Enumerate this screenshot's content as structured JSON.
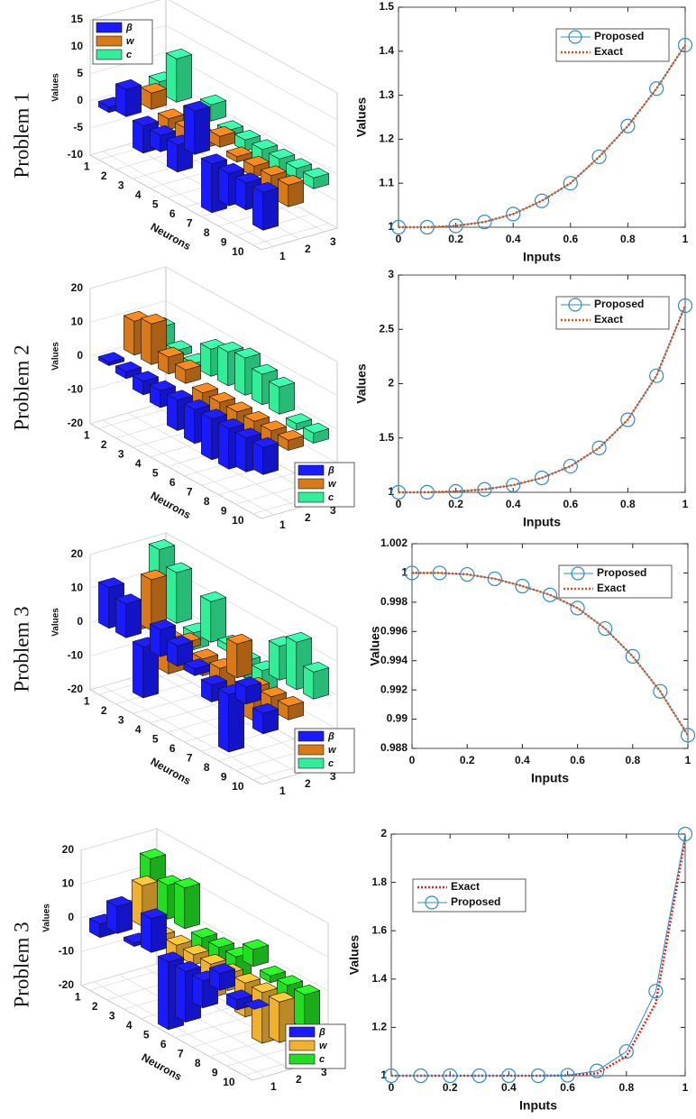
{
  "row_labels": [
    "Problem 1",
    "Problem 2",
    "Problem 3",
    "Problem 3"
  ],
  "chart_data": [
    {
      "type": "bar3d",
      "categories": [
        1,
        2,
        3,
        4,
        5,
        6,
        7,
        8,
        9,
        10
      ],
      "depth_ticks": [
        1,
        2,
        3
      ],
      "series": [
        {
          "name": "β",
          "color": "#1a1aff",
          "values": [
            -1,
            5,
            -5,
            -3,
            -5,
            8,
            -9,
            -6,
            -5,
            -7
          ]
        },
        {
          "name": "w",
          "color": "#d97a1a",
          "values": [
            0,
            3,
            -2,
            -3,
            -2,
            2,
            -1,
            -2,
            -3,
            -4
          ]
        },
        {
          "name": "c",
          "color": "#33ee99",
          "values": [
            2,
            8,
            -3,
            3,
            -1,
            -2,
            -3,
            -4,
            -2,
            -2
          ]
        }
      ],
      "zlim": [
        -10,
        15
      ],
      "zticks": [
        -10,
        -5,
        0,
        5,
        10,
        15
      ],
      "xlabel": "Neurons",
      "zlabel": "Values",
      "legend": "northwest",
      "grid": true
    },
    {
      "type": "line",
      "x": [
        0,
        0.1,
        0.2,
        0.3,
        0.4,
        0.5,
        0.6,
        0.7,
        0.8,
        0.9,
        1
      ],
      "series": [
        {
          "name": "Proposed",
          "color": "#2e8bc0",
          "style": "solid",
          "marker": "o",
          "values": [
            1,
            1.0,
            1.003,
            1.012,
            1.03,
            1.06,
            1.1,
            1.16,
            1.23,
            1.315,
            1.414
          ]
        },
        {
          "name": "Exact",
          "color": "#d95319",
          "style": "dotted",
          "values": [
            1,
            1.0,
            1.003,
            1.012,
            1.03,
            1.06,
            1.1,
            1.16,
            1.23,
            1.315,
            1.414
          ]
        }
      ],
      "xlim": [
        0,
        1
      ],
      "xticks": [
        0,
        0.2,
        0.4,
        0.6,
        0.8,
        1
      ],
      "ylim": [
        1,
        1.5
      ],
      "yticks": [
        1,
        1.1,
        1.2,
        1.3,
        1.4,
        1.5
      ],
      "xlabel": "Inputs",
      "ylabel": "Values",
      "legend": "northeast"
    },
    {
      "type": "bar3d",
      "categories": [
        1,
        2,
        3,
        4,
        5,
        6,
        7,
        8,
        9,
        10
      ],
      "depth_ticks": [
        1,
        2,
        3
      ],
      "series": [
        {
          "name": "β",
          "color": "#1a1aff",
          "values": [
            -1,
            -2,
            -4,
            -5,
            -9,
            -10,
            -12,
            -12,
            -10,
            -8
          ]
        },
        {
          "name": "w",
          "color": "#d97a1a",
          "values": [
            10,
            12,
            5,
            4,
            -5,
            -4,
            -6,
            -7,
            -5,
            -3
          ]
        },
        {
          "name": "c",
          "color": "#33ee99",
          "values": [
            6,
            2,
            1,
            8,
            10,
            11,
            9,
            8,
            -2,
            -3
          ]
        }
      ],
      "zlim": [
        -20,
        20
      ],
      "zticks": [
        -20,
        -10,
        0,
        10,
        20
      ],
      "xlabel": "Neurons",
      "zlabel": "Values",
      "legend": "southeast",
      "grid": true
    },
    {
      "type": "line",
      "x": [
        0,
        0.1,
        0.2,
        0.3,
        0.4,
        0.5,
        0.6,
        0.7,
        0.8,
        0.9,
        1
      ],
      "series": [
        {
          "name": "Proposed",
          "color": "#2e8bc0",
          "style": "solid",
          "marker": "o",
          "values": [
            1,
            1.001,
            1.008,
            1.027,
            1.066,
            1.133,
            1.241,
            1.409,
            1.668,
            2.073,
            2.718
          ]
        },
        {
          "name": "Exact",
          "color": "#d95319",
          "style": "dotted",
          "values": [
            1,
            1.001,
            1.008,
            1.027,
            1.066,
            1.133,
            1.241,
            1.409,
            1.668,
            2.073,
            2.718
          ]
        }
      ],
      "xlim": [
        0,
        1
      ],
      "xticks": [
        0,
        0.2,
        0.4,
        0.6,
        0.8,
        1
      ],
      "ylim": [
        1,
        3
      ],
      "yticks": [
        1,
        1.5,
        2,
        2.5,
        3
      ],
      "xlabel": "Inputs",
      "ylabel": "Values",
      "legend": "northeast"
    },
    {
      "type": "bar3d",
      "categories": [
        1,
        2,
        3,
        4,
        5,
        6,
        7,
        8,
        9,
        10
      ],
      "depth_ticks": [
        1,
        2,
        3
      ],
      "series": [
        {
          "name": "β",
          "color": "#1a1aff",
          "values": [
            12,
            10,
            -15,
            8,
            6,
            2,
            -5,
            -17,
            5,
            -6
          ]
        },
        {
          "name": "w",
          "color": "#d97a1a",
          "values": [
            -3,
            15,
            -10,
            2,
            -5,
            -8,
            10,
            -10,
            -6,
            -4
          ]
        },
        {
          "name": "c",
          "color": "#33ee99",
          "values": [
            19,
            15,
            -5,
            12,
            2,
            -5,
            -8,
            10,
            14,
            8
          ]
        }
      ],
      "zlim": [
        -20,
        20
      ],
      "zticks": [
        -20,
        -10,
        0,
        10,
        20
      ],
      "xlabel": "Neurons",
      "zlabel": "Values",
      "legend": "southeast",
      "grid": true
    },
    {
      "type": "line",
      "x": [
        0,
        0.1,
        0.2,
        0.3,
        0.4,
        0.5,
        0.6,
        0.7,
        0.8,
        0.9,
        1
      ],
      "series": [
        {
          "name": "Proposed",
          "color": "#2e8bc0",
          "style": "solid",
          "marker": "o",
          "values": [
            1,
            1.0,
            0.9999,
            0.9996,
            0.9991,
            0.9985,
            0.9976,
            0.9962,
            0.9943,
            0.9919,
            0.9889
          ]
        },
        {
          "name": "Exact",
          "color": "#d95319",
          "style": "dotted",
          "values": [
            1,
            1.0,
            0.9999,
            0.9996,
            0.9991,
            0.9985,
            0.9976,
            0.9962,
            0.9943,
            0.9919,
            0.9889
          ]
        }
      ],
      "xlim": [
        0,
        1
      ],
      "xticks": [
        0,
        0.2,
        0.4,
        0.6,
        0.8,
        1
      ],
      "ylim": [
        0.988,
        1.002
      ],
      "yticks": [
        0.988,
        0.99,
        0.992,
        0.994,
        0.996,
        0.998,
        1,
        1.002
      ],
      "xlabel": "Inputs",
      "ylabel": "Values",
      "legend": "northeast"
    },
    {
      "type": "bar3d",
      "categories": [
        1,
        2,
        3,
        4,
        5,
        6,
        7,
        8,
        9,
        10
      ],
      "depth_ticks": [
        1,
        2,
        3
      ],
      "series": [
        {
          "name": "β",
          "color": "#1a1aff",
          "values": [
            -4,
            8,
            -1,
            10,
            -20,
            -15,
            -8,
            5,
            -3,
            0
          ]
        },
        {
          "name": "w",
          "color": "#f0b030",
          "values": [
            2,
            12,
            -2,
            -5,
            -3,
            -10,
            -5,
            -10,
            -15,
            -12
          ]
        },
        {
          "name": "c",
          "color": "#22dd22",
          "values": [
            15,
            10,
            12,
            -5,
            -8,
            -8,
            5,
            -2,
            -12,
            -10
          ]
        }
      ],
      "zlim": [
        -20,
        20
      ],
      "zticks": [
        -20,
        -10,
        0,
        10,
        20
      ],
      "xlabel": "Neurons",
      "zlabel": "Values",
      "legend": "southeast",
      "grid": true
    },
    {
      "type": "line",
      "x": [
        0,
        0.1,
        0.2,
        0.3,
        0.4,
        0.5,
        0.6,
        0.7,
        0.8,
        0.9,
        1
      ],
      "series": [
        {
          "name": "Exact",
          "color": "#e02020",
          "style": "dotted",
          "values": [
            1,
            1,
            1,
            1,
            1,
            1,
            1.001,
            1.01,
            1.08,
            1.3,
            1.98
          ]
        },
        {
          "name": "Proposed",
          "color": "#2e8bc0",
          "style": "solid",
          "marker": "o",
          "values": [
            1,
            1,
            1,
            1,
            1,
            1,
            1.002,
            1.02,
            1.1,
            1.35,
            2
          ]
        }
      ],
      "xlim": [
        0,
        1
      ],
      "xticks": [
        0,
        0.2,
        0.4,
        0.6,
        0.8,
        1
      ],
      "ylim": [
        1,
        2
      ],
      "yticks": [
        1,
        1.2,
        1.4,
        1.6,
        1.8,
        2
      ],
      "xlabel": "Inputs",
      "ylabel": "Values",
      "legend": "northwest"
    }
  ]
}
